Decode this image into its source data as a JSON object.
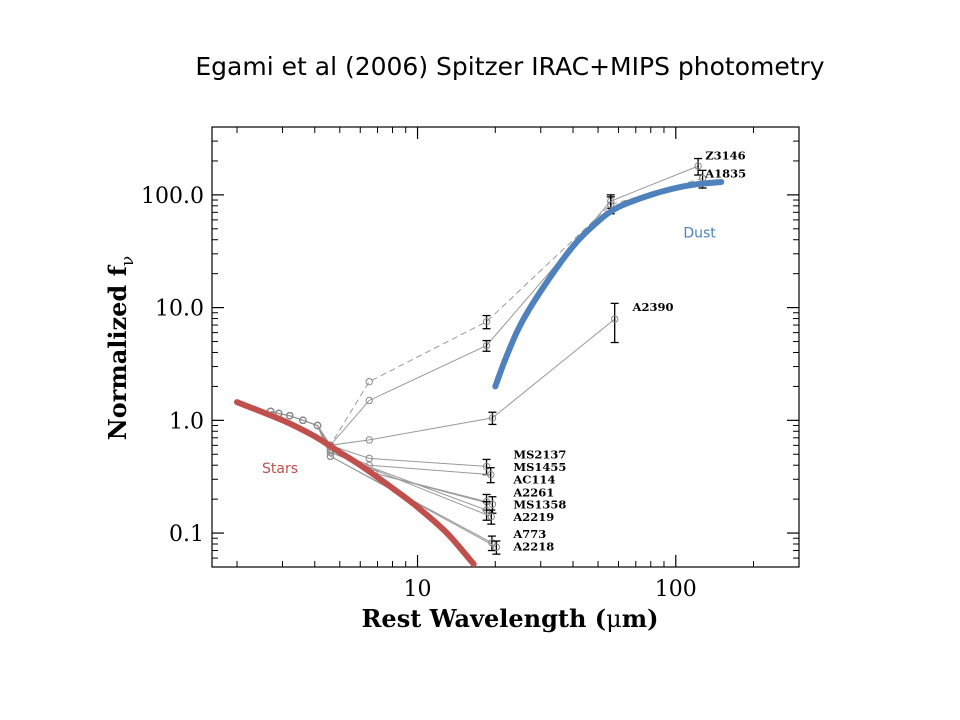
{
  "slide_title": "Egami et al (2006) Spitzer IRAC+MIPS photometry",
  "chart_data": {
    "type": "line",
    "x_scale": "log",
    "y_scale": "log",
    "xlim": [
      1.6,
      300
    ],
    "ylim": [
      0.05,
      400
    ],
    "grid": false,
    "xlabel_parts": [
      "Rest Wavelength (",
      "μ",
      "m)"
    ],
    "ylabel_parts": [
      "Normalized f",
      "ν"
    ],
    "x_ticks": [
      {
        "value": 10,
        "label": "10"
      },
      {
        "value": 100,
        "label": "100"
      }
    ],
    "x_minor_ticks": [
      2,
      3,
      4,
      5,
      6,
      7,
      8,
      9,
      20,
      30,
      40,
      50,
      60,
      70,
      80,
      90,
      200
    ],
    "y_ticks": [
      {
        "value": 0.1,
        "label": "0.1"
      },
      {
        "value": 1.0,
        "label": "1.0"
      },
      {
        "value": 10.0,
        "label": "10.0"
      },
      {
        "value": 100.0,
        "label": "100.0"
      }
    ],
    "y_minor_ticks": [
      0.06,
      0.07,
      0.08,
      0.09,
      0.2,
      0.3,
      0.4,
      0.5,
      0.6,
      0.7,
      0.8,
      0.9,
      2,
      3,
      4,
      5,
      6,
      7,
      8,
      9,
      20,
      30,
      40,
      50,
      60,
      70,
      80,
      90,
      200,
      300
    ],
    "series": [
      {
        "name": "Z3146",
        "dashed": false,
        "x": [
          2.7,
          2.9,
          3.2,
          3.6,
          4.1,
          4.6,
          6.5,
          18.5,
          56,
          122
        ],
        "y": [
          1.2,
          1.15,
          1.1,
          1.0,
          0.9,
          0.6,
          1.5,
          4.6,
          88,
          180
        ],
        "err": [
          0,
          0,
          0,
          0,
          0,
          0,
          0,
          0.5,
          12,
          30
        ]
      },
      {
        "name": "A1835",
        "dashed": true,
        "x": [
          2.7,
          2.9,
          3.2,
          3.6,
          4.1,
          4.6,
          6.5,
          18.5,
          56,
          127
        ],
        "y": [
          1.2,
          1.15,
          1.1,
          1.0,
          0.9,
          0.6,
          2.2,
          7.5,
          82,
          140
        ],
        "err": [
          0,
          0,
          0,
          0,
          0,
          0,
          0,
          1,
          14,
          25
        ]
      },
      {
        "name": "A2390",
        "dashed": false,
        "x": [
          2.7,
          2.9,
          3.2,
          3.6,
          4.1,
          4.6,
          6.5,
          19.5,
          58
        ],
        "y": [
          1.2,
          1.15,
          1.1,
          1.0,
          0.9,
          0.6,
          0.67,
          1.05,
          7.9
        ],
        "err": [
          0,
          0,
          0,
          0,
          0,
          0,
          0,
          0.13,
          3
        ]
      },
      {
        "name": "MS2137",
        "dashed": false,
        "x": [
          2.7,
          2.9,
          3.2,
          3.6,
          4.1,
          4.6,
          6.5,
          18.5
        ],
        "y": [
          1.2,
          1.15,
          1.1,
          1.0,
          0.9,
          0.6,
          0.46,
          0.39
        ],
        "err": [
          0,
          0,
          0,
          0,
          0,
          0,
          0,
          0.06
        ]
      },
      {
        "name": "MS1455",
        "dashed": false,
        "x": [
          2.7,
          2.9,
          3.2,
          3.6,
          4.1,
          4.6,
          6.5,
          19.2
        ],
        "y": [
          1.2,
          1.15,
          1.1,
          1.0,
          0.9,
          0.55,
          0.4,
          0.33
        ],
        "err": [
          0,
          0,
          0,
          0,
          0,
          0,
          0,
          0.05
        ]
      },
      {
        "name": "AC114",
        "dashed": false,
        "x": [
          2.7,
          2.9,
          3.2,
          3.6,
          4.1,
          4.6,
          6.8,
          18.5
        ],
        "y": [
          1.2,
          1.15,
          1.1,
          1.0,
          0.9,
          0.55,
          0.34,
          0.19
        ],
        "err": [
          0,
          0,
          0,
          0,
          0,
          0,
          0,
          0.03
        ]
      },
      {
        "name": "A2261",
        "dashed": false,
        "x": [
          2.7,
          2.9,
          3.2,
          3.6,
          4.1,
          4.6,
          6.8,
          19.5
        ],
        "y": [
          1.2,
          1.15,
          1.1,
          1.0,
          0.9,
          0.55,
          0.34,
          0.18
        ],
        "err": [
          0,
          0,
          0,
          0,
          0,
          0,
          0,
          0.03
        ]
      },
      {
        "name": "MS1358",
        "dashed": false,
        "x": [
          2.7,
          2.9,
          3.2,
          3.6,
          4.1,
          4.6,
          18.5
        ],
        "y": [
          1.2,
          1.15,
          1.1,
          1.0,
          0.9,
          0.52,
          0.16
        ],
        "err": [
          0,
          0,
          0,
          0,
          0,
          0,
          0.03
        ]
      },
      {
        "name": "A2219",
        "dashed": false,
        "x": [
          2.7,
          2.9,
          3.2,
          3.6,
          4.1,
          4.6,
          19.3
        ],
        "y": [
          1.2,
          1.15,
          1.1,
          1.0,
          0.9,
          0.52,
          0.14
        ],
        "err": [
          0,
          0,
          0,
          0,
          0,
          0,
          0.02
        ]
      },
      {
        "name": "A773",
        "dashed": false,
        "x": [
          2.7,
          2.9,
          3.2,
          3.6,
          4.1,
          4.6,
          19.4
        ],
        "y": [
          1.2,
          1.15,
          1.1,
          1.0,
          0.9,
          0.48,
          0.082
        ],
        "err": [
          0,
          0,
          0,
          0,
          0,
          0,
          0.012
        ]
      },
      {
        "name": "A2218",
        "dashed": false,
        "x": [
          2.7,
          2.9,
          3.2,
          3.6,
          4.1,
          4.6,
          20.2
        ],
        "y": [
          1.2,
          1.15,
          1.1,
          1.0,
          0.9,
          0.48,
          0.075
        ],
        "err": [
          0,
          0,
          0,
          0,
          0,
          0,
          0.01
        ]
      }
    ],
    "series_labels": [
      {
        "text": "Z3146",
        "x": 130,
        "y": 205
      },
      {
        "text": "A1835",
        "x": 130,
        "y": 142
      },
      {
        "text": "A2390",
        "x": 68,
        "y": 9.3
      },
      {
        "text": "MS2137",
        "x": 23.5,
        "y": 0.46
      },
      {
        "text": "MS1455",
        "x": 23.5,
        "y": 0.355
      },
      {
        "text": "AC114",
        "x": 23.5,
        "y": 0.275
      },
      {
        "text": "A2261",
        "x": 23.5,
        "y": 0.212
      },
      {
        "text": "MS1358",
        "x": 23.5,
        "y": 0.165
      },
      {
        "text": "A2219",
        "x": 23.5,
        "y": 0.128
      },
      {
        "text": "A773",
        "x": 23.5,
        "y": 0.09
      },
      {
        "text": "A2218",
        "x": 23.5,
        "y": 0.07
      }
    ],
    "overlays": [
      {
        "name": "Stars",
        "color": "#c0504d",
        "x": [
          2.0,
          3.0,
          4.0,
          5.0,
          6.0,
          8.0,
          10.0,
          13.0,
          16.5
        ],
        "y": [
          1.45,
          1.0,
          0.72,
          0.52,
          0.4,
          0.25,
          0.17,
          0.1,
          0.053
        ],
        "label_x": 2.5,
        "label_y": 0.34
      },
      {
        "name": "Dust",
        "color": "#4f81bd",
        "x": [
          20.0,
          22.0,
          25.0,
          30.0,
          40.0,
          50.0,
          60.0,
          80.0,
          100.0,
          120.0,
          150.0
        ],
        "y": [
          2.0,
          3.6,
          7.0,
          14.0,
          35.0,
          58.0,
          78.0,
          100.0,
          115.0,
          124.0,
          130.0
        ],
        "label_x": 107,
        "label_y": 42
      }
    ]
  }
}
